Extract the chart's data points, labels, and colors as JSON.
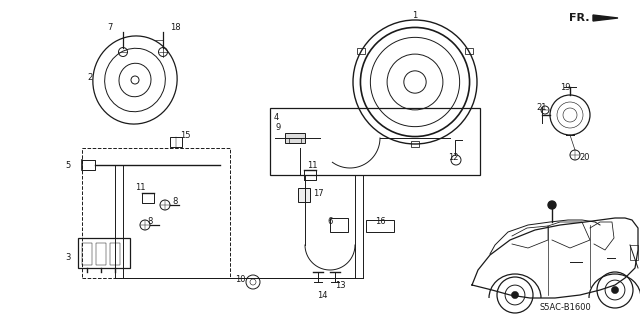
{
  "bg_color": "#ffffff",
  "fig_width": 6.4,
  "fig_height": 3.19,
  "dpi": 100,
  "diagram_code": "S5AC-B1600",
  "fr_label": "FR.",
  "line_color": "#1a1a1a",
  "label_fontsize": 6.0
}
